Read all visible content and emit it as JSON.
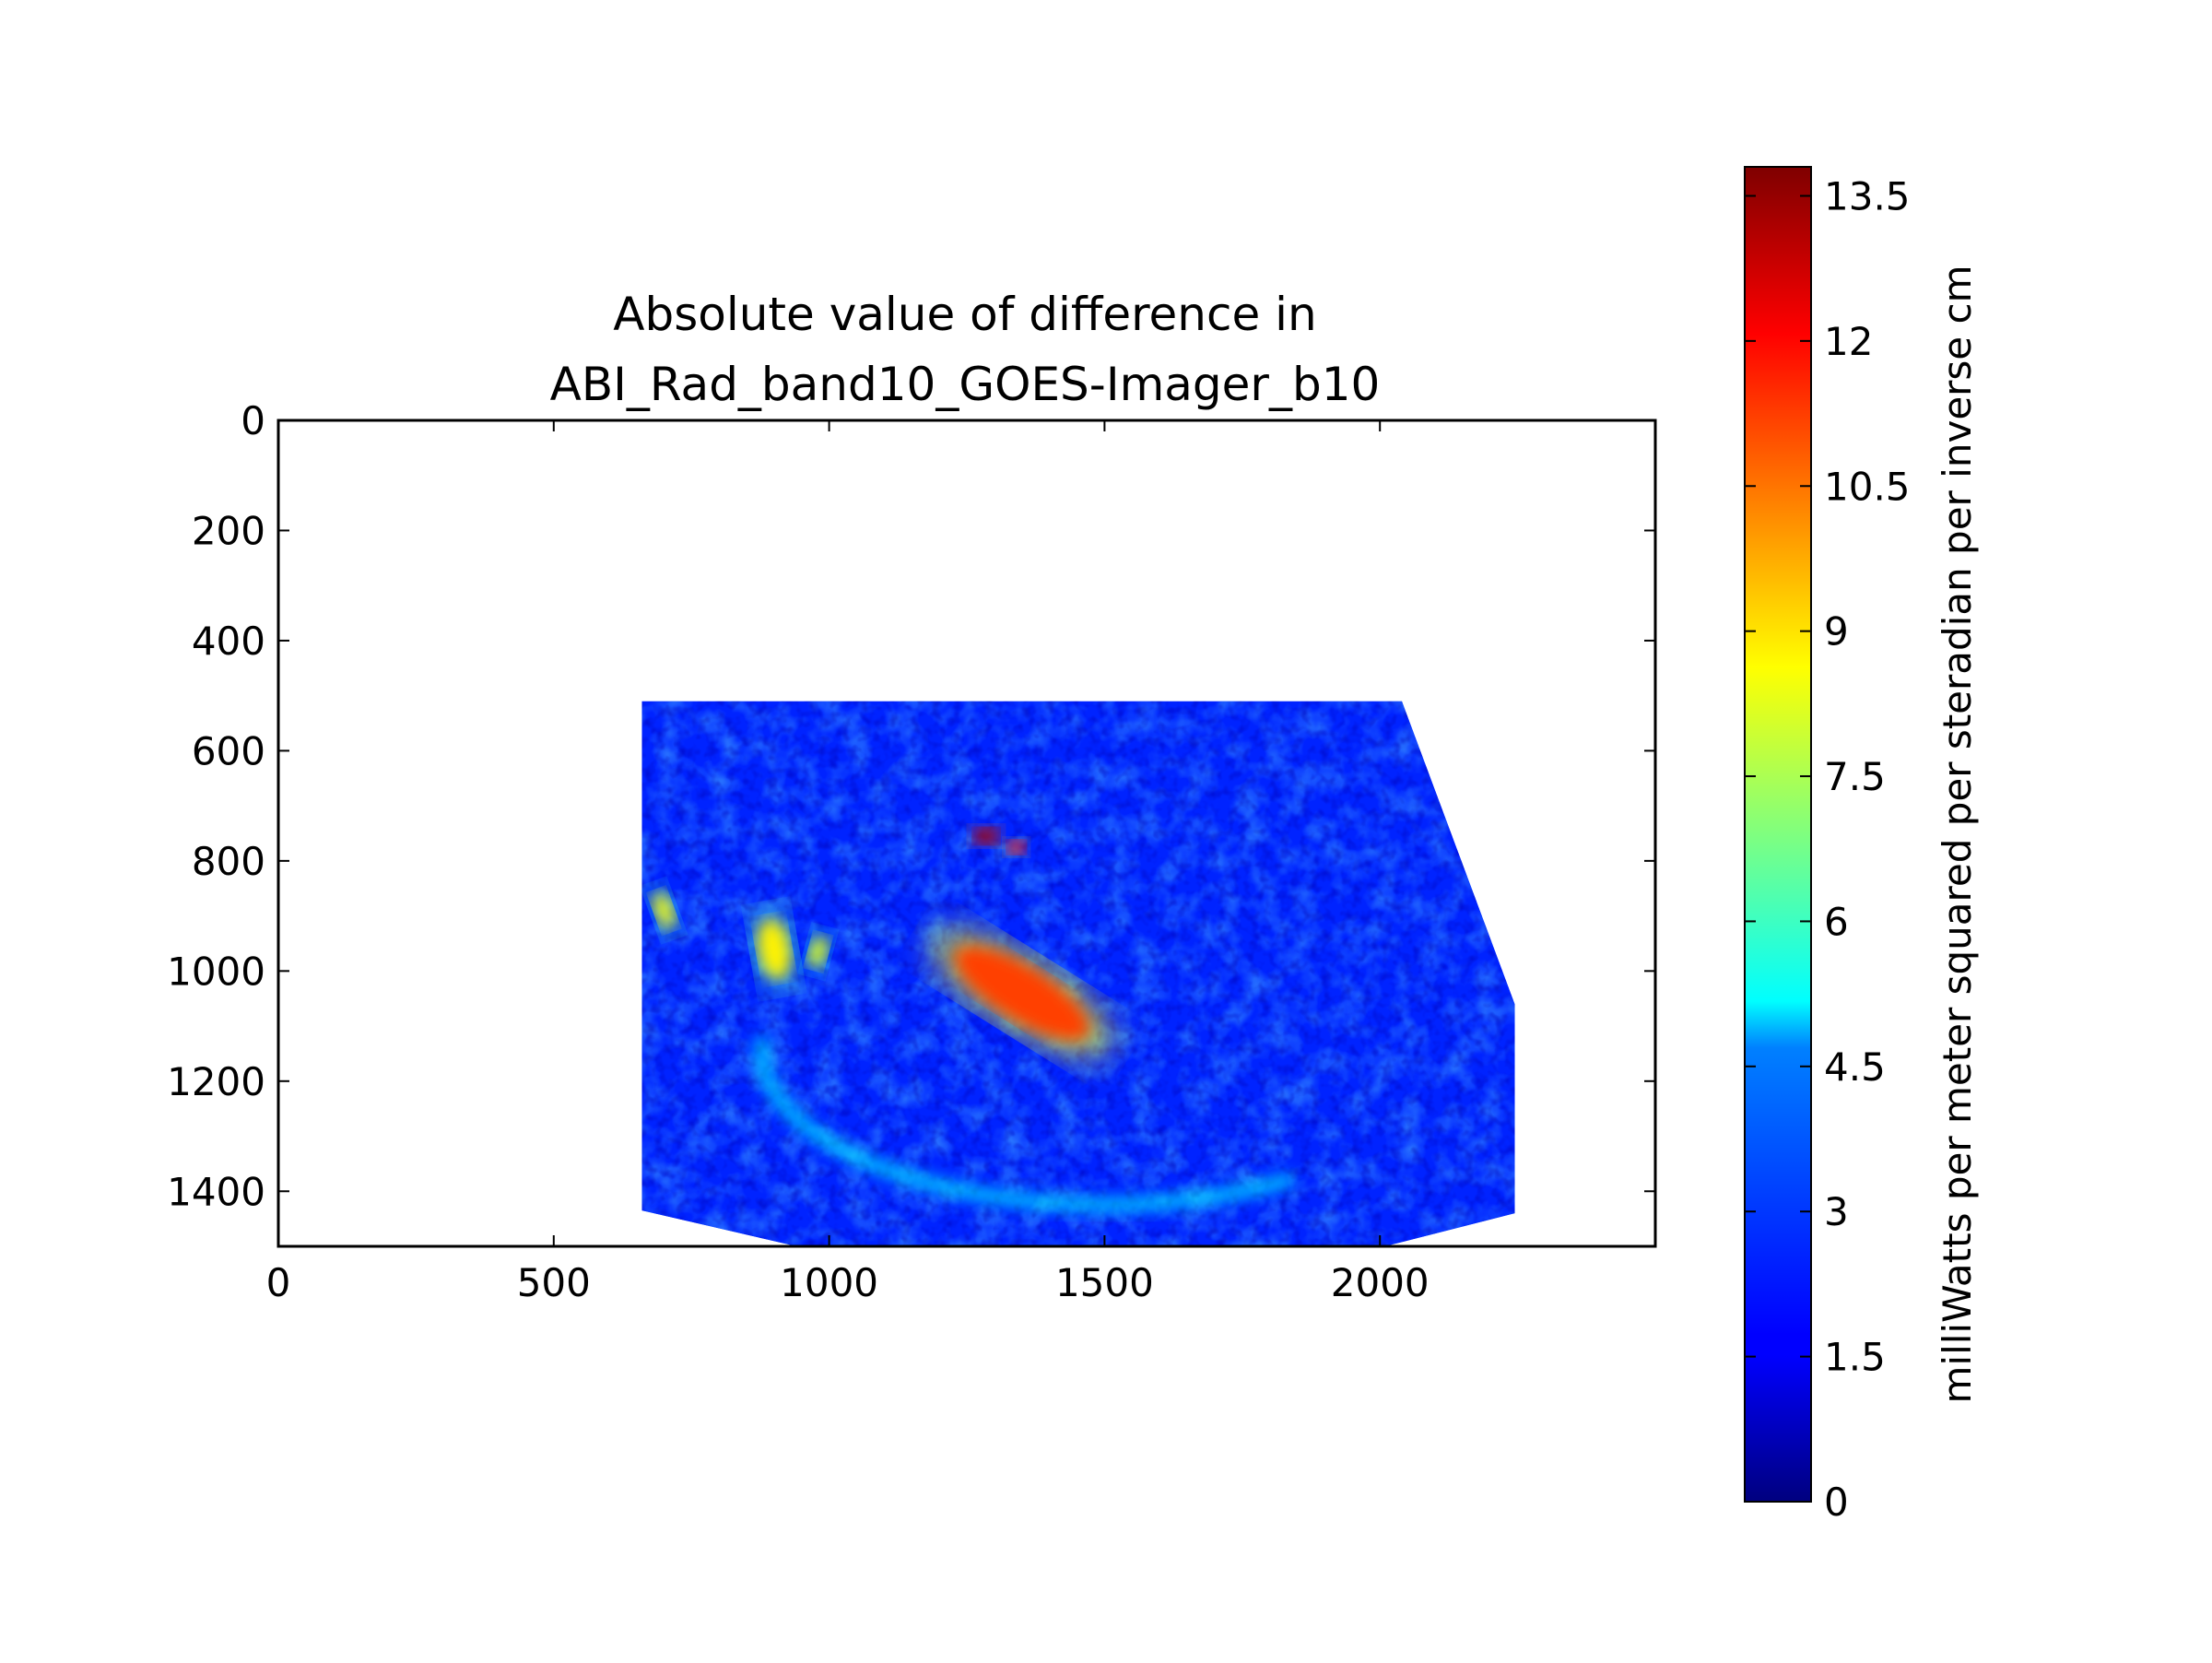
{
  "chart_data": {
    "type": "heatmap",
    "title_lines": [
      "Absolute value of difference in",
      "ABI_Rad_band10_GOES-Imager_b10"
    ],
    "xlim": [
      0,
      2500
    ],
    "ylim": [
      1500,
      0
    ],
    "x_ticks": [
      0,
      500,
      1000,
      1500,
      2000
    ],
    "y_ticks": [
      0,
      200,
      400,
      600,
      800,
      1000,
      1200,
      1400
    ],
    "x_tick_labels": [
      "0",
      "500",
      "1000",
      "1500",
      "2000"
    ],
    "y_tick_labels": [
      "0",
      "200",
      "400",
      "600",
      "800",
      "1000",
      "1200",
      "1400"
    ],
    "colormap": "jet",
    "colorbar": {
      "min": 0,
      "max": 13.8,
      "ticks": [
        0,
        1.5,
        3,
        4.5,
        6,
        7.5,
        9,
        10.5,
        12,
        13.5
      ],
      "tick_labels": [
        "0",
        "1.5",
        "3",
        "4.5",
        "6",
        "7.5",
        "9",
        "10.5",
        "12",
        "13.5"
      ],
      "label": "milliWatts per meter squared per steradian per inverse cm"
    },
    "data_region": {
      "boundary": [
        [
          660,
          510
        ],
        [
          2040,
          510
        ],
        [
          2245,
          1060
        ],
        [
          2245,
          1440
        ],
        [
          2010,
          1500
        ],
        [
          940,
          1500
        ],
        [
          660,
          1435
        ]
      ]
    },
    "features": [
      {
        "name": "main-band",
        "cx": 1350,
        "cy": 1040,
        "rx": 140,
        "ry": 48,
        "rotation_deg": 32,
        "value": 11.2
      },
      {
        "name": "small-core-1",
        "cx": 1285,
        "cy": 755,
        "rx": 22,
        "ry": 14,
        "rotation_deg": 0,
        "value": 13.2
      },
      {
        "name": "small-core-2",
        "cx": 1340,
        "cy": 775,
        "rx": 16,
        "ry": 12,
        "rotation_deg": 0,
        "value": 12.0
      },
      {
        "name": "west-patch-1",
        "cx": 900,
        "cy": 960,
        "rx": 28,
        "ry": 55,
        "rotation_deg": -10,
        "value": 8.8
      },
      {
        "name": "west-patch-2",
        "cx": 980,
        "cy": 965,
        "rx": 16,
        "ry": 30,
        "rotation_deg": 15,
        "value": 8.2
      },
      {
        "name": "west-patch-3",
        "cx": 700,
        "cy": 890,
        "rx": 16,
        "ry": 35,
        "rotation_deg": -20,
        "value": 8.5
      },
      {
        "name": "south-arc",
        "cx": 1500,
        "cy": 1120,
        "rx": 620,
        "ry": 280,
        "rotation_deg": 0,
        "value": 5.0
      }
    ],
    "background_value": 2.2
  }
}
